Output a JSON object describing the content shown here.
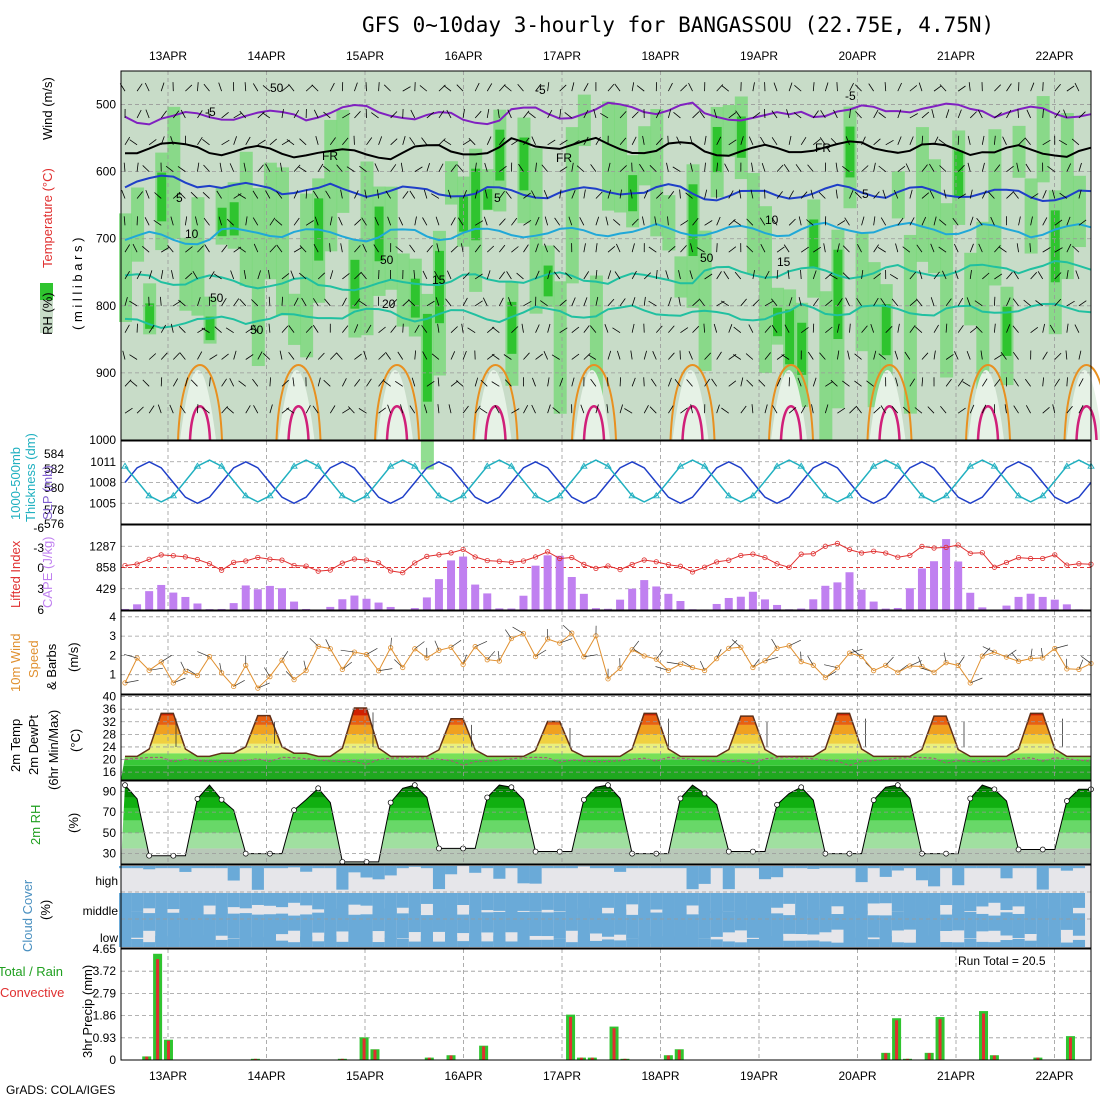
{
  "title": "GFS 0~10day 3-hourly for BANGASSOU (22.75E, 4.75N)",
  "footer": "GrADS: COLA/IGES",
  "dates": [
    "13APR",
    "14APR",
    "15APR",
    "16APR",
    "17APR",
    "18APR",
    "19APR",
    "20APR",
    "21APR",
    "22APR"
  ],
  "colors": {
    "rh_green": "#2fc42f",
    "rh_light": "#7ed87e",
    "rh_pale": "#c8dcc8",
    "temp_blue": "#1f3fc8",
    "temp_cyan": "#20a8d8",
    "temp_teal": "#20c0a0",
    "temp_orange": "#e89020",
    "temp_magenta": "#d0207a",
    "purple": "#8020c0",
    "slp": "#1f3fc8",
    "thick": "#20b0c0",
    "cape": "#c080f0",
    "li": "#e03030",
    "wind": "#e09030",
    "rain": "#e03030",
    "precip": "#2fc42f",
    "cloud": "#6aaad8",
    "cloud_gap": "#e6e6ea"
  },
  "panels": {
    "profile": {
      "ylabel_a": "Wind (m/s)",
      "ylabel_b": "Temperature (°C)",
      "ylabel_c": "RH (%)",
      "ylabel_d": "( m i l l i b a r s )",
      "ticks": [
        "500",
        "600",
        "700",
        "800",
        "900",
        "1000"
      ],
      "contour_labels": [
        "-5",
        "-5",
        "-5",
        "FR",
        "FR",
        "FR",
        "5",
        "5",
        "5",
        "10",
        "10",
        "15",
        "15",
        "20",
        "50",
        "50",
        "50",
        "50",
        "50"
      ]
    },
    "slp": {
      "ylabel_a": "1000-500mb",
      "ylabel_b": "Thickness (dm)",
      "ylabel_c": "SLP (mb)",
      "left_ticks": [
        "584",
        "582",
        "580",
        "578",
        "576"
      ],
      "right_ticks": [
        "1011",
        "1008",
        "1005"
      ]
    },
    "cape": {
      "ylabel_a": "Lifted Index",
      "ylabel_b": "CAPE (J/kg)",
      "left_ticks": [
        "-6",
        "-3",
        "0",
        "3",
        "6"
      ],
      "right_ticks": [
        "1287",
        "858",
        "429"
      ]
    },
    "wind": {
      "ylabel_a": "10m Wind",
      "ylabel_b": "Speed",
      "ylabel_c": "& Barbs",
      "ylabel_d": "(m/s)",
      "ticks": [
        "4",
        "3",
        "2",
        "1"
      ]
    },
    "temp": {
      "ylabel_a": "2m Temp",
      "ylabel_b": "2m DewPt",
      "ylabel_c": "(6hr Min/Max)",
      "ylabel_d": "(°C)",
      "ticks": [
        "40",
        "36",
        "32",
        "28",
        "24",
        "20",
        "16"
      ]
    },
    "rh": {
      "ylabel_a": "2m RH",
      "ylabel_b": "(%)",
      "ticks": [
        "90",
        "70",
        "50",
        "30"
      ]
    },
    "cloud": {
      "ylabel_a": "Cloud Cover",
      "ylabel_b": "(%)",
      "levels": [
        "high",
        "middle",
        "low"
      ]
    },
    "precip": {
      "ylabel_a": "Total / Rain",
      "ylabel_b": "Convective",
      "ylabel_c": "3hr Precip (mm)",
      "ticks": [
        "4.65",
        "3.72",
        "2.79",
        "1.86",
        "0.93",
        "0"
      ],
      "run_total": "Run Total = 20.5"
    }
  },
  "chart_data": [
    {
      "type": "area",
      "title": "GFS 0~10day 3-hourly for BANGASSOU (22.75E, 4.75N)",
      "panel": "Pressure-level RH / Temperature / Wind",
      "ylabel": "millibars",
      "ylim": [
        450,
        1000
      ],
      "series": [
        {
          "name": "-5",
          "values": [
            520,
            515,
            510,
            520,
            512,
            505,
            518,
            510,
            505,
            512
          ]
        },
        {
          "name": "FR",
          "values": [
            565,
            570,
            572,
            568,
            560,
            565,
            570,
            562,
            566,
            570
          ]
        },
        {
          "name": "5",
          "values": [
            615,
            625,
            628,
            630,
            632,
            628,
            635,
            630,
            632,
            635
          ]
        },
        {
          "name": "10",
          "values": [
            700,
            690,
            695,
            692,
            690,
            688,
            690,
            686,
            685,
            688
          ]
        },
        {
          "name": "15",
          "values": [
            760,
            765,
            770,
            762,
            758,
            760,
            750,
            752,
            748,
            742
          ]
        },
        {
          "name": "20",
          "values": [
            825,
            818,
            812,
            815,
            810,
            808,
            815,
            805,
            808,
            804
          ]
        }
      ]
    },
    {
      "type": "line",
      "panel": "1000-500mb Thickness / SLP",
      "x": [
        "13APR",
        "14APR",
        "15APR",
        "16APR",
        "17APR",
        "18APR",
        "19APR",
        "20APR",
        "21APR",
        "22APR"
      ],
      "series": [
        {
          "name": "SLP (mb)",
          "values": [
            1006.5,
            1011.5,
            1010.5,
            1006,
            1011.5,
            1011,
            1006,
            1011,
            1010,
            1007
          ]
        },
        {
          "name": "Thickness (dm)",
          "values": [
            579.5,
            582.5,
            579,
            582,
            578.5,
            580.5,
            583,
            580.5,
            582,
            581
          ]
        }
      ],
      "ylim_left": [
        576,
        584
      ],
      "ylim_right": [
        1002,
        1014
      ]
    },
    {
      "type": "bar",
      "panel": "Lifted Index / CAPE",
      "x": [
        "13APR",
        "14APR",
        "15APR",
        "16APR",
        "17APR",
        "18APR",
        "19APR",
        "20APR",
        "21APR",
        "22APR"
      ],
      "series": [
        {
          "name": "CAPE (J/kg)",
          "values": [
            560,
            720,
            330,
            1200,
            1300,
            700,
            430,
            880,
            1500,
            420
          ]
        },
        {
          "name": "Lifted Index",
          "values": [
            -2,
            -1.5,
            -1,
            -2.2,
            -1.8,
            -1.2,
            -1.5,
            -3,
            -3.2,
            -1.8
          ]
        }
      ],
      "ylim_left": [
        -6,
        6
      ],
      "ylim_right": [
        0,
        1716
      ]
    },
    {
      "type": "line",
      "panel": "10m Wind Speed & Barbs",
      "x": [
        "13APR",
        "14APR",
        "15APR",
        "16APR",
        "17APR",
        "18APR",
        "19APR",
        "20APR",
        "21APR",
        "22APR"
      ],
      "series": [
        {
          "name": "10m Wind Speed (m/s)",
          "values": [
            1.2,
            1.0,
            2.0,
            1.8,
            2.4,
            1.5,
            1.7,
            1.6,
            1.3,
            1.6
          ]
        }
      ],
      "ylim": [
        0,
        4
      ]
    },
    {
      "type": "area",
      "panel": "2m Temp / 2m DewPt",
      "x": [
        "13APR",
        "14APR",
        "15APR",
        "16APR",
        "17APR",
        "18APR",
        "19APR",
        "20APR",
        "21APR",
        "22APR"
      ],
      "series": [
        {
          "name": "2m Temp max",
          "values": [
            37,
            36,
            39,
            35,
            34,
            37,
            36,
            37,
            36,
            37
          ]
        },
        {
          "name": "2m Temp min",
          "values": [
            21,
            22,
            21,
            21,
            21,
            21,
            21,
            21,
            21,
            21
          ]
        },
        {
          "name": "2m DewPt",
          "values": [
            20,
            20,
            20,
            20,
            20,
            20,
            20,
            20,
            20,
            20
          ]
        }
      ],
      "ylim": [
        14,
        40
      ]
    },
    {
      "type": "area",
      "panel": "2m RH",
      "x": [
        "13APR",
        "14APR",
        "15APR",
        "16APR",
        "17APR",
        "18APR",
        "19APR",
        "20APR",
        "21APR",
        "22APR"
      ],
      "series": [
        {
          "name": "2m RH max",
          "values": [
            96,
            82,
            93,
            96,
            94,
            96,
            88,
            94,
            96,
            92
          ]
        },
        {
          "name": "2m RH min",
          "values": [
            28,
            30,
            22,
            35,
            32,
            30,
            32,
            30,
            30,
            34
          ]
        }
      ],
      "ylim": [
        20,
        100
      ]
    },
    {
      "type": "heatmap",
      "panel": "Cloud Cover",
      "categories": [
        "high",
        "middle",
        "low"
      ],
      "ylabel": "(%)"
    },
    {
      "type": "bar",
      "panel": "3hr Precip",
      "x": [
        "13APR",
        "14APR",
        "15APR",
        "16APR",
        "17APR",
        "18APR",
        "19APR",
        "20APR",
        "21APR",
        "22APR"
      ],
      "series": [
        {
          "name": "Total (mm)",
          "values": [
            4.45,
            0.05,
            0.95,
            0.6,
            1.9,
            0.45,
            0.0,
            1.75,
            2.05,
            1.0
          ]
        },
        {
          "name": "Convective (mm)",
          "values": [
            4.4,
            0.05,
            0.9,
            0.6,
            1.85,
            0.4,
            0.0,
            1.7,
            2.0,
            0.95
          ]
        }
      ],
      "ylim": [
        0,
        4.65
      ],
      "annotations": [
        "Run Total = 20.5"
      ]
    }
  ]
}
